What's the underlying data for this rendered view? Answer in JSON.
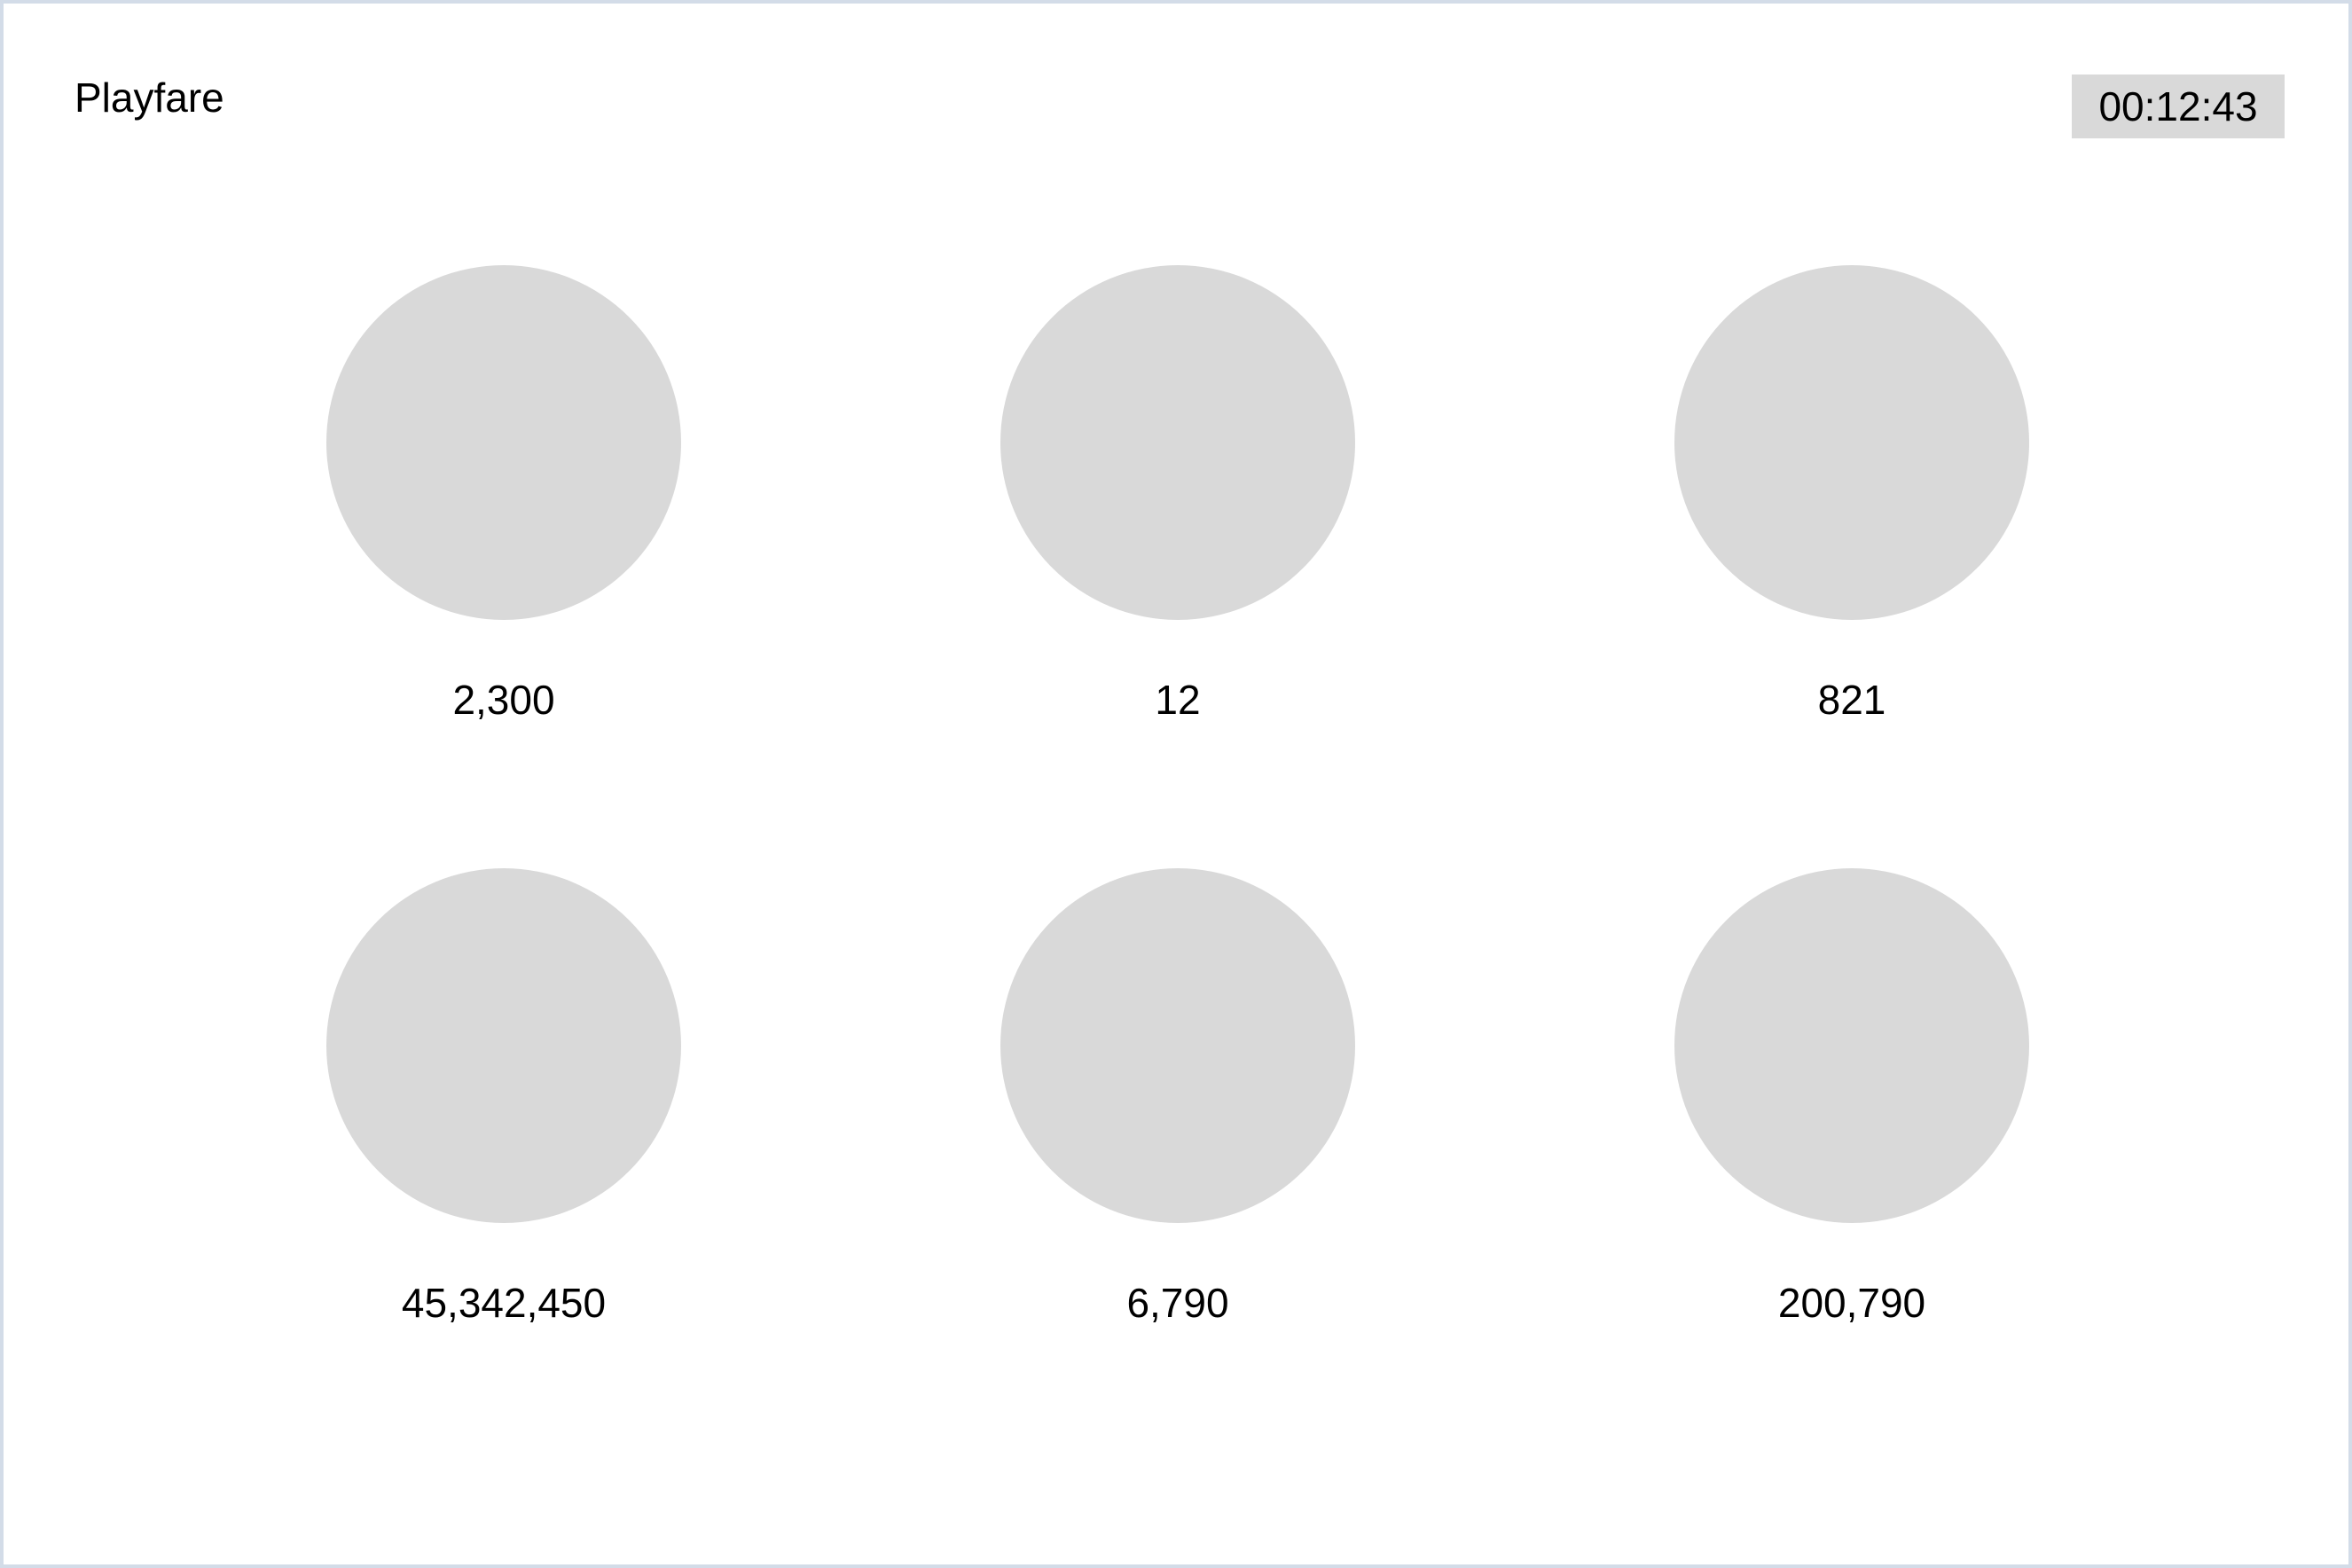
{
  "app": {
    "title": "Playfare"
  },
  "timer": {
    "value": "00:12:43"
  },
  "tiles": [
    {
      "value": "2,300"
    },
    {
      "value": "12"
    },
    {
      "value": "821"
    },
    {
      "value": "45,342,450"
    },
    {
      "value": "6,790"
    },
    {
      "value": "200,790"
    }
  ],
  "colors": {
    "frame_border": "#d3dce8",
    "placeholder": "#d9d9d9",
    "text": "#000000",
    "background": "#ffffff"
  }
}
